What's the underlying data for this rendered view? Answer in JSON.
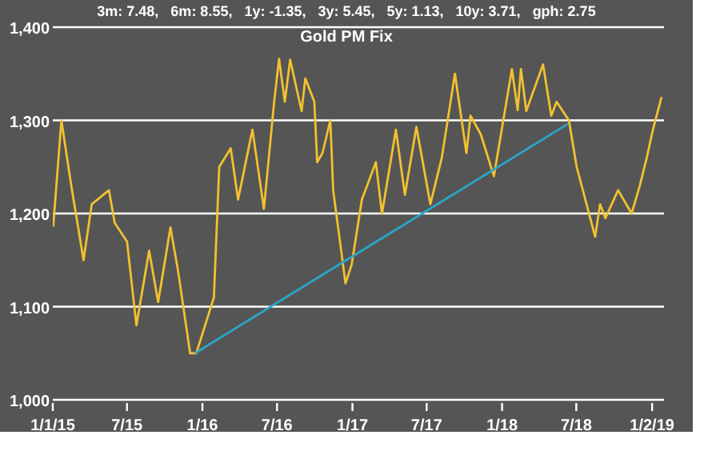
{
  "chart_data": {
    "type": "line",
    "title": "Gold PM Fix",
    "subtitle": "3m: 7.48,   6m: 8.55,   1y: -1.35,   3y: 5.45,   5y: 1.13,   10y: 3.71,   gph: 2.75",
    "series": [
      {
        "color": "#f2c12e",
        "x": [
          "2015-01-02",
          "2015-01-22",
          "2015-02-15",
          "2015-03-17",
          "2015-04-06",
          "2015-05-18",
          "2015-06-01",
          "2015-07-01",
          "2015-07-24",
          "2015-08-24",
          "2015-09-15",
          "2015-10-15",
          "2015-11-02",
          "2015-12-02",
          "2015-12-17",
          "2016-01-04",
          "2016-01-29",
          "2016-02-11",
          "2016-03-10",
          "2016-03-28",
          "2016-05-02",
          "2016-05-30",
          "2016-06-24",
          "2016-07-06",
          "2016-07-20",
          "2016-08-02",
          "2016-08-30",
          "2016-09-08",
          "2016-09-30",
          "2016-10-07",
          "2016-10-20",
          "2016-11-08",
          "2016-11-15",
          "2016-12-15",
          "2016-12-30",
          "2017-01-24",
          "2017-02-27",
          "2017-03-14",
          "2017-04-17",
          "2017-05-09",
          "2017-06-06",
          "2017-07-10",
          "2017-08-07",
          "2017-09-08",
          "2017-10-06",
          "2017-10-16",
          "2017-11-10",
          "2017-12-12",
          "2018-01-25",
          "2018-02-08",
          "2018-02-16",
          "2018-03-01",
          "2018-04-11",
          "2018-05-01",
          "2018-05-14",
          "2018-06-13",
          "2018-07-02",
          "2018-08-16",
          "2018-08-28",
          "2018-09-10",
          "2018-10-11",
          "2018-11-13",
          "2018-12-03",
          "2018-12-20",
          "2019-01-04",
          "2019-01-25"
        ],
        "values": [
          1186,
          1300,
          1230,
          1150,
          1210,
          1225,
          1190,
          1170,
          1080,
          1160,
          1105,
          1185,
          1140,
          1050,
          1050,
          1075,
          1110,
          1250,
          1270,
          1215,
          1290,
          1205,
          1320,
          1366,
          1320,
          1365,
          1310,
          1345,
          1320,
          1255,
          1265,
          1300,
          1225,
          1125,
          1145,
          1215,
          1255,
          1200,
          1290,
          1220,
          1293,
          1210,
          1260,
          1350,
          1265,
          1305,
          1285,
          1240,
          1355,
          1311,
          1355,
          1310,
          1360,
          1305,
          1320,
          1300,
          1250,
          1175,
          1210,
          1195,
          1225,
          1200,
          1230,
          1260,
          1290,
          1325
        ]
      },
      {
        "color": "#2aa7c9",
        "x": [
          "2015-12-14",
          "2018-06-10"
        ],
        "values": [
          1050,
          1296
        ]
      }
    ],
    "xlim": [
      "2015-01-01",
      "2019-01-31"
    ],
    "xticks": [
      {
        "value": "2015-01-01",
        "label": "1/1/15"
      },
      {
        "value": "2015-07-01",
        "label": "7/15"
      },
      {
        "value": "2016-01-01",
        "label": "1/16"
      },
      {
        "value": "2016-07-01",
        "label": "7/16"
      },
      {
        "value": "2017-01-01",
        "label": "1/17"
      },
      {
        "value": "2017-07-01",
        "label": "7/17"
      },
      {
        "value": "2018-01-01",
        "label": "1/18"
      },
      {
        "value": "2018-07-01",
        "label": "7/18"
      },
      {
        "value": "2019-01-02",
        "label": "1/2/19"
      }
    ],
    "ylim": [
      1000,
      1400
    ],
    "yticks": [
      {
        "value": 1000,
        "label": "1,000"
      },
      {
        "value": 1100,
        "label": "1,100"
      },
      {
        "value": 1200,
        "label": "1,200"
      },
      {
        "value": 1300,
        "label": "1,300"
      },
      {
        "value": 1400,
        "label": "1,400"
      }
    ],
    "grid": "y",
    "marker": "none",
    "line_style": "solid"
  }
}
